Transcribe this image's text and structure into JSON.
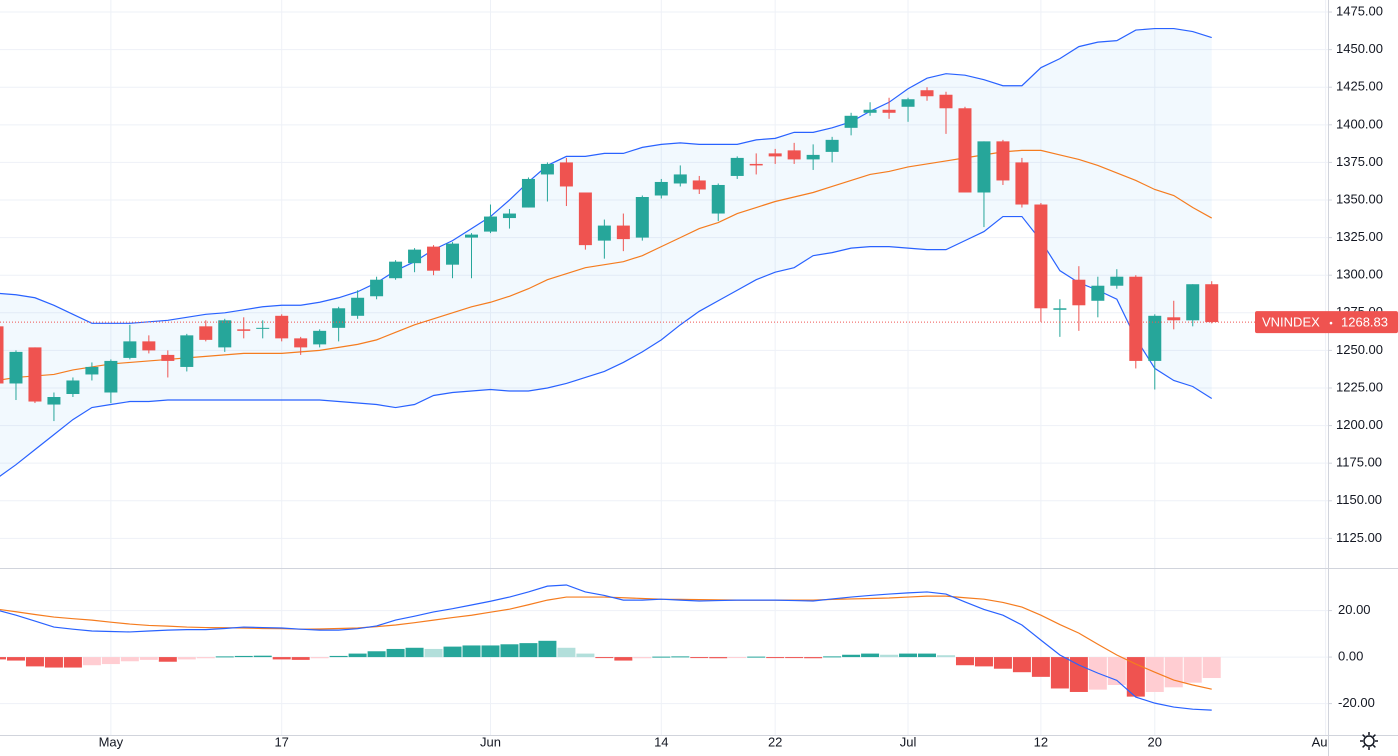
{
  "chart_data": [
    {
      "type": "candlestick",
      "symbol": "VNINDEX",
      "last_price": 1268.83,
      "categories": [
        null,
        null,
        null,
        null,
        null,
        null,
        "May",
        null,
        null,
        null,
        null,
        null,
        null,
        null,
        null,
        "17",
        null,
        null,
        null,
        null,
        null,
        null,
        null,
        null,
        null,
        null,
        "Jun",
        null,
        null,
        null,
        null,
        null,
        null,
        null,
        null,
        "14",
        null,
        null,
        null,
        null,
        null,
        "22",
        null,
        null,
        null,
        null,
        null,
        null,
        "Jul",
        null,
        null,
        null,
        null,
        null,
        null,
        "12",
        null,
        null,
        null,
        null,
        null,
        "20",
        null,
        null,
        null,
        null,
        null,
        null,
        null,
        null,
        "Au"
      ],
      "open": [
        1266,
        1228,
        1252,
        1214,
        1221,
        1234,
        1222,
        1245,
        1256,
        1247,
        1239,
        1266,
        1252,
        1264,
        1265,
        1273,
        1258,
        1254,
        1265,
        1273,
        1286,
        1298,
        1308,
        1319,
        1307,
        1325,
        1329,
        1338,
        1345,
        1367,
        1375,
        1355,
        1323,
        1333,
        1325,
        1353,
        1361,
        1363,
        1341,
        1366,
        1374,
        1381,
        1383,
        1377,
        1382,
        1398,
        1408,
        1410,
        1412,
        1423,
        1420,
        1411,
        1355,
        1389,
        1375,
        1347,
        1277,
        1297,
        1283,
        1293,
        1299,
        1243,
        1272,
        1270,
        1294,
        null,
        null,
        null,
        null,
        null,
        null
      ],
      "high": [
        1270,
        1250,
        1252,
        1222,
        1232,
        1242,
        1244,
        1267,
        1260,
        1250,
        1261,
        1270,
        1271,
        1272,
        1270,
        1274,
        1259,
        1264,
        1279,
        1290,
        1299,
        1310,
        1318,
        1320,
        1322,
        1328,
        1347,
        1344,
        1365,
        1375,
        1378,
        1355,
        1337,
        1341,
        1353,
        1364,
        1373,
        1366,
        1361,
        1379,
        1381,
        1384,
        1388,
        1387,
        1392,
        1408,
        1415,
        1418,
        1418,
        1425,
        1422,
        1412,
        1389,
        1390,
        1378,
        1348,
        1284,
        1306,
        1299,
        1304,
        1300,
        1274,
        1283,
        1294,
        1296,
        null,
        null,
        null,
        null,
        null,
        null
      ],
      "low": [
        1218,
        1217,
        1215,
        1203,
        1219,
        1230,
        1215,
        1244,
        1248,
        1232,
        1236,
        1256,
        1249,
        1258,
        1258,
        1256,
        1247,
        1252,
        1256,
        1271,
        1284,
        1297,
        1302,
        1300,
        1298,
        1298,
        1328,
        1331,
        1345,
        1349,
        1346,
        1317,
        1311,
        1316,
        1323,
        1351,
        1359,
        1354,
        1336,
        1364,
        1367,
        1374,
        1374,
        1370,
        1375,
        1393,
        1406,
        1404,
        1402,
        1416,
        1394,
        1355,
        1332,
        1360,
        1345,
        1269,
        1259,
        1263,
        1272,
        1291,
        1238,
        1224,
        1264,
        1266,
        1268,
        null,
        null,
        null,
        null,
        null,
        null
      ],
      "close": [
        1228,
        1249,
        1216,
        1219,
        1230,
        1239,
        1243,
        1256,
        1250,
        1243,
        1260,
        1257,
        1270,
        1263,
        1265,
        1258,
        1252,
        1263,
        1278,
        1285,
        1297,
        1309,
        1317,
        1303,
        1321,
        1327,
        1339,
        1341,
        1364,
        1374,
        1359,
        1320,
        1333,
        1324,
        1352,
        1362,
        1367,
        1357,
        1360,
        1378,
        1373,
        1379,
        1377,
        1380,
        1390,
        1406,
        1410,
        1408,
        1417,
        1419,
        1411,
        1355,
        1389,
        1363,
        1347,
        1278,
        1278,
        1280,
        1293,
        1299,
        1243,
        1273,
        1270,
        1294,
        1268.83,
        null,
        null,
        null,
        null,
        null,
        null
      ],
      "up_color": "#26a69a",
      "down_color": "#ef5350",
      "bands": {
        "upper": [
          1288,
          1287,
          1285,
          1280,
          1274,
          1268,
          1268,
          1268,
          1269,
          1270,
          1272,
          1274,
          1275,
          1277,
          1279,
          1280,
          1280,
          1282,
          1285,
          1289,
          1295,
          1303,
          1309,
          1317,
          1323,
          1331,
          1339,
          1350,
          1362,
          1373,
          1379,
          1379,
          1381,
          1381,
          1385,
          1387,
          1388,
          1387,
          1387,
          1387,
          1390,
          1391,
          1395,
          1395,
          1398,
          1402,
          1409,
          1415,
          1424,
          1431,
          1434,
          1433,
          1430,
          1426,
          1426,
          1438,
          1444,
          1452,
          1455,
          1456,
          1463,
          1464,
          1464,
          1462,
          1458,
          null,
          null,
          null,
          null,
          null,
          null
        ],
        "middle": [
          1230,
          1232,
          1233,
          1234,
          1237,
          1239,
          1241,
          1242,
          1243,
          1244,
          1245,
          1246,
          1247,
          1248,
          1248,
          1248,
          1249,
          1250,
          1252,
          1254,
          1257,
          1262,
          1267,
          1271,
          1275,
          1279,
          1282,
          1286,
          1291,
          1297,
          1301,
          1305,
          1307,
          1309,
          1313,
          1319,
          1325,
          1331,
          1335,
          1341,
          1345,
          1349,
          1352,
          1355,
          1359,
          1363,
          1367,
          1369,
          1372,
          1374,
          1376,
          1378,
          1380,
          1382,
          1383,
          1383,
          1380,
          1377,
          1373,
          1368,
          1363,
          1357,
          1353,
          1345,
          1338,
          null,
          null,
          null,
          null,
          null,
          null
        ],
        "lower": [
          1165,
          1174,
          1184,
          1194,
          1204,
          1212,
          1214,
          1216,
          1216,
          1217,
          1217,
          1217,
          1217,
          1217,
          1217,
          1217,
          1217,
          1217,
          1216,
          1215,
          1214,
          1212,
          1214,
          1220,
          1222,
          1223,
          1224,
          1223,
          1223,
          1225,
          1228,
          1232,
          1236,
          1242,
          1249,
          1257,
          1267,
          1276,
          1283,
          1290,
          1297,
          1302,
          1305,
          1313,
          1315,
          1318,
          1319,
          1319,
          1318,
          1317,
          1317,
          1323,
          1329,
          1339,
          1339,
          1323,
          1303,
          1295,
          1290,
          1284,
          1258,
          1238,
          1230,
          1226,
          1218,
          null,
          null,
          null,
          null,
          null,
          null
        ],
        "band_color": "#2962ff",
        "middle_color": "#f57c1f",
        "fill": "#2196f3"
      },
      "ylim": [
        1105.3,
        1483
      ],
      "yticks": [
        {
          "value": 1125,
          "label": "1125.00"
        },
        {
          "value": 1150,
          "label": "1150.00"
        },
        {
          "value": 1175,
          "label": "1175.00"
        },
        {
          "value": 1200,
          "label": "1200.00"
        },
        {
          "value": 1225,
          "label": "1225.00"
        },
        {
          "value": 1250,
          "label": "1250.00"
        },
        {
          "value": 1275,
          "label": "1275.00"
        },
        {
          "value": 1300,
          "label": "1300.00"
        },
        {
          "value": 1325,
          "label": "1325.00"
        },
        {
          "value": 1350,
          "label": "1350.00"
        },
        {
          "value": 1375,
          "label": "1375.00"
        },
        {
          "value": 1400,
          "label": "1400.00"
        },
        {
          "value": 1425,
          "label": "1425.00"
        },
        {
          "value": 1450,
          "label": "1450.00"
        },
        {
          "value": 1475,
          "label": "1475.00"
        }
      ],
      "grid": true
    },
    {
      "type": "macd",
      "macd": {
        "color": "#2962ff",
        "values": [
          20.2,
          18,
          15.5,
          12.9,
          12,
          11.2,
          11,
          10.8,
          11.2,
          11.6,
          11.8,
          11.8,
          12.3,
          12.9,
          12.7,
          12.5,
          12,
          11.6,
          11.6,
          12.2,
          13.4,
          15.9,
          17.6,
          19.4,
          20.8,
          22.4,
          24,
          25.8,
          28,
          30.5,
          31,
          28,
          26.5,
          24.5,
          24.5,
          24.9,
          24.5,
          24.1,
          24.3,
          24.5,
          24.5,
          24.5,
          24.3,
          24.1,
          25,
          25.8,
          26.5,
          27.1,
          27.6,
          28,
          27.1,
          23.7,
          20.5,
          18,
          13.8,
          7.3,
          0.9,
          -3.4,
          -6.9,
          -10,
          -17.2,
          -19.8,
          -21.5,
          -22.4,
          -22.8,
          null,
          null,
          null,
          null,
          null,
          null
        ]
      },
      "signal": {
        "color": "#f57c1f",
        "values": [
          20.6,
          19.5,
          18.3,
          17.2,
          16.5,
          15.9,
          15,
          14.2,
          13.6,
          13.3,
          12.9,
          12.7,
          12.6,
          12.5,
          12.3,
          12.2,
          12,
          12.1,
          12.3,
          12.5,
          13.1,
          13.8,
          14.8,
          15.9,
          17,
          18,
          19.3,
          20.6,
          22.5,
          24.5,
          25.8,
          25.8,
          25.8,
          25.5,
          25.2,
          24.9,
          24.8,
          24.7,
          24.6,
          24.5,
          24.5,
          24.5,
          24.5,
          24.5,
          24.8,
          25,
          25.2,
          25.4,
          25.8,
          26.2,
          26.2,
          25.5,
          24.9,
          23.5,
          21.5,
          18,
          14,
          10.3,
          5.5,
          0.9,
          -3,
          -6.5,
          -9.9,
          -12,
          -13.8,
          null,
          null,
          null,
          null,
          null,
          null
        ]
      },
      "histogram": {
        "values": [
          -1,
          -1.5,
          -4,
          -4.5,
          -4.5,
          -3.5,
          -3,
          -1.8,
          -1.2,
          -2,
          -1,
          -0.5,
          0.3,
          0.5,
          0.6,
          -1,
          -1.2,
          -0.5,
          0.5,
          1.5,
          2.5,
          3.5,
          4,
          3.5,
          4.5,
          5,
          5,
          5.5,
          6,
          7,
          4,
          1.5,
          -0.3,
          -1.5,
          -0.5,
          0.2,
          0.3,
          -0.3,
          -0.5,
          -0.3,
          0.2,
          -0.2,
          -0.3,
          -0.5,
          0.3,
          1,
          1.5,
          1,
          1.5,
          1.5,
          0.8,
          -3.5,
          -4,
          -5,
          -6.5,
          -8.5,
          -13.5,
          -15,
          -14,
          -12,
          -17,
          -15,
          -13,
          -11,
          -9,
          null,
          null,
          null,
          null,
          null,
          null
        ],
        "colors": {
          "up_rising": "#26a69a",
          "up_falling": "#b2dfdb",
          "down_falling": "#ef5350",
          "down_rising": "#ffcdd2"
        }
      },
      "ylim": [
        -33.5,
        38.3
      ],
      "yticks": [
        {
          "value": 20,
          "label": "20.00"
        },
        {
          "value": 0,
          "label": "0.00"
        },
        {
          "value": -20,
          "label": "-20.00"
        }
      ],
      "grid": true
    }
  ]
}
